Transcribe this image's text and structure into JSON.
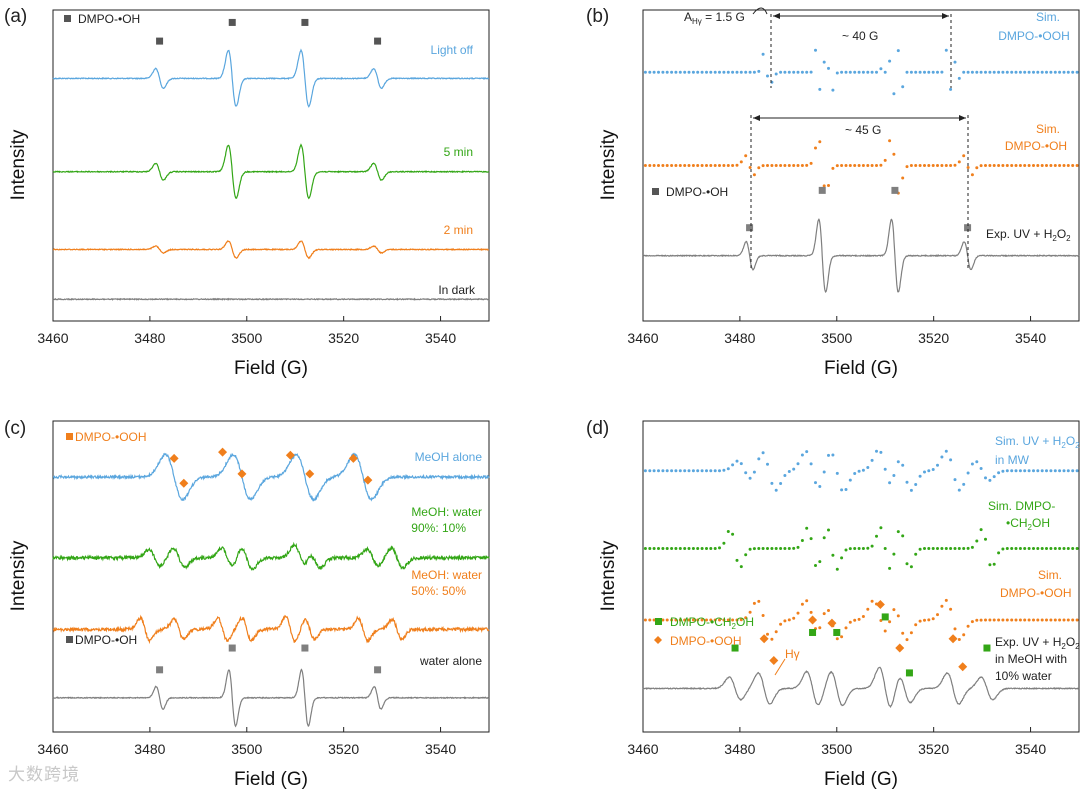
{
  "colors": {
    "blue": "#5aa6de",
    "green": "#33a616",
    "orange": "#f07f1c",
    "gray": "#7f7f7f",
    "marker": "#555555"
  },
  "watermark": "大数跨境",
  "chart_data": [
    {
      "type": "line",
      "panel": "(a)",
      "xlabel": "Field (G)",
      "ylabel": "Intensity",
      "xlim": [
        3460,
        3550
      ],
      "xticks": [
        3460,
        3480,
        3500,
        3520,
        3540
      ],
      "legend": "DMPO-•OH",
      "series": [
        {
          "name": "Light off",
          "color": "blue",
          "style": "solid",
          "offset": 0.22,
          "peaks": [
            3482,
            3497,
            3512,
            3527
          ],
          "amps": [
            0.35,
            1.0,
            1.0,
            0.35
          ],
          "width": 0.8
        },
        {
          "name": "5 min",
          "color": "green",
          "style": "solid",
          "offset": 0.52,
          "peaks": [
            3482,
            3497,
            3512,
            3527
          ],
          "amps": [
            0.3,
            0.95,
            0.95,
            0.3
          ],
          "width": 0.8
        },
        {
          "name": "2 min",
          "color": "orange",
          "style": "solid",
          "offset": 0.77,
          "peaks": [
            3482,
            3497,
            3512,
            3527
          ],
          "amps": [
            0.12,
            0.3,
            0.3,
            0.12
          ],
          "width": 0.8
        },
        {
          "name": "In dark",
          "color": "gray",
          "style": "solid",
          "offset": 0.93,
          "peaks": [],
          "amps": [],
          "width": 0.8
        }
      ],
      "markers": [
        {
          "x": 3482,
          "y": 0.1
        },
        {
          "x": 3497,
          "y": 0.04
        },
        {
          "x": 3512,
          "y": 0.04
        },
        {
          "x": 3527,
          "y": 0.1
        }
      ]
    },
    {
      "type": "line",
      "panel": "(b)",
      "xlabel": "Field (G)",
      "ylabel": "Intensity",
      "xlim": [
        3460,
        3550
      ],
      "xticks": [
        3460,
        3480,
        3500,
        3520,
        3540
      ],
      "legend": "DMPO-•OH",
      "series": [
        {
          "name": "Sim. DMPO-•OOH",
          "color": "blue",
          "style": "dotted",
          "offset": 0.2,
          "peaks": [
            3485,
            3486.5,
            3496,
            3497.5,
            3499,
            3510,
            3511.5,
            3513,
            3523,
            3524.5
          ],
          "amps": [
            0.8,
            0.8,
            0.8,
            0.8,
            0.8,
            0.8,
            0.8,
            0.8,
            0.8,
            0.8
          ],
          "width": 0.35
        },
        {
          "name": "Sim. DMPO-•OH",
          "color": "orange",
          "style": "dotted",
          "offset": 0.5,
          "peaks": [
            3482,
            3497,
            3512,
            3527
          ],
          "amps": [
            0.35,
            1.0,
            1.0,
            0.35
          ],
          "width": 0.8
        },
        {
          "name": "Exp. UV + H2O2",
          "color": "gray",
          "style": "solid",
          "offset": 0.79,
          "peaks": [
            3482,
            3497,
            3512,
            3527
          ],
          "amps": [
            0.5,
            1.3,
            1.3,
            0.5
          ],
          "width": 0.7
        }
      ],
      "markers": [
        {
          "x": 3482,
          "y": 0.7
        },
        {
          "x": 3497,
          "y": 0.58
        },
        {
          "x": 3512,
          "y": 0.58
        },
        {
          "x": 3527,
          "y": 0.7
        }
      ],
      "annotations": [
        {
          "text": "A",
          "sub": "Hγ",
          "tail": " = 1.5 G"
        },
        {
          "text": "~ 40 G",
          "x1": 3485,
          "x2": 3525
        },
        {
          "text": "~ 45 G",
          "x1": 3482,
          "x2": 3527
        }
      ]
    },
    {
      "type": "line",
      "panel": "(c)",
      "xlabel": "Field (G)",
      "ylabel": "Intensity",
      "xlim": [
        3460,
        3550
      ],
      "xticks": [
        3460,
        3480,
        3500,
        3520,
        3540
      ],
      "legend_top": "DMPO-•OOH",
      "legend_bottom": "DMPO-•OH",
      "series": [
        {
          "name": "MeOH alone",
          "color": "blue",
          "style": "solid",
          "offset": 0.18,
          "peaks": [
            3485,
            3499,
            3512,
            3524
          ],
          "amps": [
            0.8,
            0.8,
            0.8,
            0.8
          ],
          "width": 1.8
        },
        {
          "name": "MeOH: water 90%: 10%",
          "color": "green",
          "style": "solid",
          "offset": 0.44,
          "peaks": [
            3481,
            3486,
            3496,
            3500,
            3511,
            3514,
            3526,
            3531
          ],
          "amps": [
            0.3,
            0.35,
            0.35,
            0.4,
            0.45,
            0.35,
            0.3,
            0.35
          ],
          "width": 1.2
        },
        {
          "name": "MeOH: water 50%: 50%",
          "color": "orange",
          "style": "solid",
          "offset": 0.67,
          "peaks": [
            3479,
            3486,
            3495,
            3500,
            3509,
            3513,
            3524,
            3531
          ],
          "amps": [
            0.4,
            0.35,
            0.4,
            0.4,
            0.45,
            0.35,
            0.4,
            0.35
          ],
          "width": 1.0
        },
        {
          "name": "water alone",
          "color": "gray",
          "style": "solid",
          "offset": 0.89,
          "peaks": [
            3482,
            3497,
            3512,
            3527
          ],
          "amps": [
            0.4,
            1.0,
            1.0,
            0.4
          ],
          "width": 0.7
        }
      ],
      "diamonds": [
        {
          "x": 3485,
          "y": 0.12
        },
        {
          "x": 3487,
          "y": 0.2
        },
        {
          "x": 3495,
          "y": 0.1
        },
        {
          "x": 3499,
          "y": 0.17
        },
        {
          "x": 3509,
          "y": 0.11
        },
        {
          "x": 3513,
          "y": 0.17
        },
        {
          "x": 3522,
          "y": 0.12
        },
        {
          "x": 3525,
          "y": 0.19
        }
      ],
      "markers": [
        {
          "x": 3482,
          "y": 0.8
        },
        {
          "x": 3497,
          "y": 0.73
        },
        {
          "x": 3512,
          "y": 0.73
        },
        {
          "x": 3527,
          "y": 0.8
        }
      ]
    },
    {
      "type": "line",
      "panel": "(d)",
      "xlabel": "Field (G)",
      "ylabel": "Intensity",
      "xlim": [
        3460,
        3550
      ],
      "xticks": [
        3460,
        3480,
        3500,
        3520,
        3540
      ],
      "legend": [
        "DMPO-•CH2OH",
        "DMPO-•OOH"
      ],
      "hgamma": "Hγ",
      "series": [
        {
          "name": "Sim. UV + H2O2 in MW",
          "color": "blue",
          "style": "dotted",
          "offset": 0.16,
          "peaks": [
            3481,
            3486,
            3495,
            3500,
            3510,
            3514,
            3524,
            3530
          ],
          "amps": [
            0.35,
            0.7,
            0.7,
            0.75,
            0.75,
            0.7,
            0.7,
            0.35
          ],
          "width": 1.4
        },
        {
          "name": "Sim. DMPO-•CH2OH",
          "color": "green",
          "style": "dotted",
          "offset": 0.41,
          "peaks": [
            3479,
            3495,
            3499,
            3510,
            3514,
            3531
          ],
          "amps": [
            0.7,
            0.75,
            0.75,
            0.75,
            0.75,
            0.7
          ],
          "width": 1.0
        },
        {
          "name": "Sim. DMPO-•OOH",
          "color": "orange",
          "style": "dotted",
          "offset": 0.64,
          "peaks": [
            3485,
            3495,
            3499,
            3509,
            3513,
            3524
          ],
          "amps": [
            0.7,
            0.7,
            0.7,
            0.7,
            0.7,
            0.7
          ],
          "width": 1.4
        },
        {
          "name": "Exp. UV + H2O2 in MeOH with 10% water",
          "color": "gray",
          "style": "solid",
          "offset": 0.86,
          "peaks": [
            3479,
            3485,
            3495,
            3500,
            3510,
            3514,
            3524,
            3531
          ],
          "amps": [
            0.4,
            0.55,
            0.6,
            0.6,
            0.75,
            0.5,
            0.55,
            0.4
          ],
          "width": 1.2
        }
      ],
      "squares": [
        {
          "x": 3479,
          "y": 0.73
        },
        {
          "x": 3495,
          "y": 0.68
        },
        {
          "x": 3500,
          "y": 0.68
        },
        {
          "x": 3510,
          "y": 0.63
        },
        {
          "x": 3515,
          "y": 0.81
        },
        {
          "x": 3531,
          "y": 0.73
        }
      ],
      "diamonds": [
        {
          "x": 3485,
          "y": 0.7
        },
        {
          "x": 3487,
          "y": 0.77
        },
        {
          "x": 3495,
          "y": 0.64
        },
        {
          "x": 3499,
          "y": 0.65
        },
        {
          "x": 3509,
          "y": 0.59
        },
        {
          "x": 3513,
          "y": 0.73
        },
        {
          "x": 3524,
          "y": 0.7
        },
        {
          "x": 3526,
          "y": 0.79
        }
      ]
    }
  ],
  "labels": {
    "a": {
      "light_off": "Light off",
      "five_min": "5 min",
      "two_min": "2 min",
      "dark": "In dark",
      "legend": "DMPO-•OH"
    },
    "b": {
      "sim_ooh_1": "Sim.",
      "sim_ooh_2": "DMPO-•OOH",
      "sim_oh_1": "Sim.",
      "sim_oh_2": "DMPO-•OH",
      "exp": "Exp. UV + H",
      "exp_sub": "2",
      "exp_o": "O",
      "exp_sub2": "2",
      "legend": "DMPO-•OH",
      "a_main": "A",
      "a_sub": "Hγ",
      "a_tail": " = 1.5 G",
      "split40": "~ 40 G",
      "split45": "~ 45 G"
    },
    "c": {
      "meoh": "MeOH alone",
      "m90_1": "MeOH: water",
      "m90_2": "90%: 10%",
      "m50_1": "MeOH: water",
      "m50_2": "50%: 50%",
      "water": "water alone",
      "legend_top": "DMPO-•OOH",
      "legend_bottom": "DMPO-•OH"
    },
    "d": {
      "sim_mw_1": "Sim. UV + H",
      "sim_mw_1b": "O",
      "sim_mw_2": "in MW",
      "sim_ch2_1": "Sim. DMPO-",
      "sim_ch2_2": "•CH",
      "sim_ch2_2b": "OH",
      "sim_ooh_1": "Sim.",
      "sim_ooh_2": "DMPO-•OOH",
      "exp_1": "Exp. UV + H",
      "exp_1b": "O",
      "exp_2": "in MeOH with",
      "exp_3": "10% water",
      "leg_ch2": "DMPO-•CH",
      "leg_ch2b": "OH",
      "leg_ooh": "DMPO-•OOH",
      "hgamma": "Hγ",
      "sub2": "2"
    }
  }
}
